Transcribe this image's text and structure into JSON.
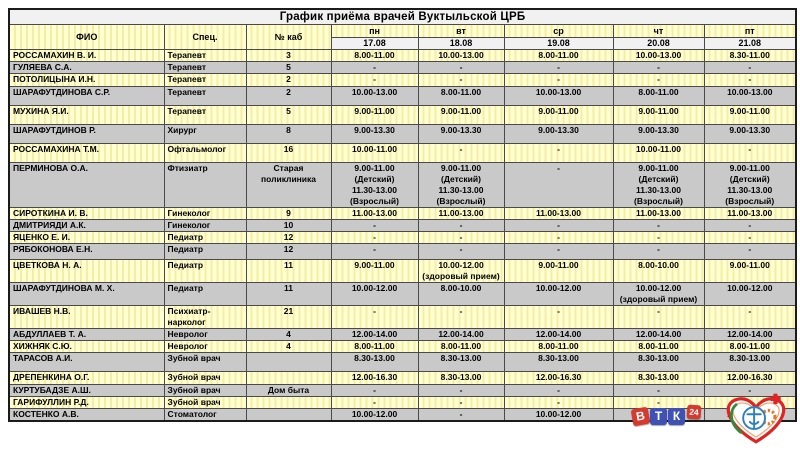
{
  "title": "График приёма врачей Вуктыльской ЦРБ",
  "columns": {
    "fio": "ФИО",
    "spec": "Спец.",
    "cab": "№ каб"
  },
  "days": [
    {
      "name": "пн",
      "date": "17.08"
    },
    {
      "name": "вт",
      "date": "18.08"
    },
    {
      "name": "ср",
      "date": "19.08"
    },
    {
      "name": "чт",
      "date": "20.08"
    },
    {
      "name": "пт",
      "date": "21.08"
    }
  ],
  "rows": [
    {
      "fio": "РОССАМАХИН В. И.",
      "spec": "Терапевт",
      "cab": "3",
      "times": [
        "8.00-11.00",
        "10.00-13.00",
        "8.00-11.00",
        "10.00-13.00",
        "8.30-11.00"
      ]
    },
    {
      "fio": "ГУЛЯЕВА С.А.",
      "spec": "Терапевт",
      "cab": "5",
      "times": [
        "-",
        "-",
        "-",
        "-",
        "-"
      ]
    },
    {
      "fio": "ПОТОЛИЦЫНА И.Н.",
      "spec": "Терапевт",
      "cab": "2",
      "times": [
        "-",
        "-",
        "-",
        "-",
        "-"
      ]
    },
    {
      "fio": "ШАРАФУТДИНОВА С.Р.",
      "spec": "Терапевт",
      "cab": "2",
      "times": [
        "10.00-13.00",
        "8.00-11.00",
        "10.00-13.00",
        "8.00-11.00",
        "10.00-13.00"
      ]
    },
    {
      "fio": "МУХИНА Я.И.",
      "spec": "Терапевт",
      "cab": "5",
      "times": [
        "9.00-11.00",
        "9.00-11.00",
        "9.00-11.00",
        "9.00-11.00",
        "9.00-11.00"
      ]
    },
    {
      "fio": "ШАРАФУТДИНОВ Р.",
      "spec": "Хирург",
      "cab": "8",
      "times": [
        "9.00-13.30",
        "9.00-13.30",
        "9.00-13.30",
        "9.00-13.30",
        "9.00-13.30"
      ]
    },
    {
      "fio": "РОССАМАХИНА Т.М.",
      "spec": "Офтальмолог",
      "cab": "16",
      "times": [
        "10.00-11.00",
        "-",
        "-",
        "10.00-11.00",
        "-"
      ]
    },
    {
      "fio": "ПЕРМИНОВА О.А.",
      "spec": "Фтизиатр",
      "cab": "Старая поликлиника",
      "times": [
        "9.00-11.00\n(Детский)\n11.30-13.00\n(Взрослый)",
        "9.00-11.00\n(Детский)\n11.30-13.00\n(Взрослый)",
        "-",
        "9.00-11.00\n(Детский)\n11.30-13.00\n(Взрослый)",
        "9.00-11.00\n(Детский)\n11.30-13.00\n(Взрослый)"
      ]
    },
    {
      "fio": "СИРОТКИНА И. В.",
      "spec": "Гинеколог",
      "cab": "9",
      "times": [
        "11.00-13.00",
        "11.00-13.00",
        "11.00-13.00",
        "11.00-13.00",
        "11.00-13.00"
      ]
    },
    {
      "fio": "ДМИТРИЯДИ А.К.",
      "spec": "Гинеколог",
      "cab": "10",
      "times": [
        "-",
        "-",
        "-",
        "-",
        "-"
      ]
    },
    {
      "fio": "ЯЦЕНКО Е. И.",
      "spec": "Педиатр",
      "cab": "12",
      "times": [
        "-",
        "-",
        "-",
        "-",
        "-"
      ]
    },
    {
      "fio": "РЯБОКОНОВА Е.Н.",
      "spec": "Педиатр",
      "cab": "12",
      "times": [
        "-",
        "-",
        "-",
        "-",
        "-"
      ]
    },
    {
      "fio": "ЦВЕТКОВА Н. А.",
      "spec": "Педиатр",
      "cab": "11",
      "times": [
        "9.00-11.00",
        "10.00-12.00\n(здоровый прием)",
        "9.00-11.00",
        "8.00-10.00",
        "9.00-11.00"
      ]
    },
    {
      "fio": "ШАРАФУТДИНОВА М. Х.",
      "spec": "Педиатр",
      "cab": "11",
      "times": [
        "10.00-12.00",
        "8.00-10.00",
        "10.00-12.00",
        "10.00-12.00\n(здоровый прием)",
        "10.00-12.00"
      ]
    },
    {
      "fio": "ИВАШЕВ Н.В.",
      "spec": "Психиатр-нарколог",
      "cab": "21",
      "times": [
        "-",
        "-",
        "-",
        "-",
        "-"
      ]
    },
    {
      "fio": "АБДУЛЛАЕВ Т. А.",
      "spec": "Невролог",
      "cab": "4",
      "times": [
        "12.00-14.00",
        "12.00-14.00",
        "12.00-14.00",
        "12.00-14.00",
        "12.00-14.00"
      ]
    },
    {
      "fio": "ХИЖНЯК С.Ю.",
      "spec": "Невролог",
      "cab": "4",
      "times": [
        "8.00-11.00",
        "8.00-11.00",
        "8.00-11.00",
        "8.00-11.00",
        "8.00-11.00"
      ]
    },
    {
      "fio": "ТАРАСОВ А.И.",
      "spec": "Зубной врач",
      "cab": "",
      "times": [
        "8.30-13.00",
        "8.30-13.00",
        "8.30-13.00",
        "8.30-13.00",
        "8.30-13.00"
      ]
    },
    {
      "fio": "ДРЕПЕНКИНА О.Г.",
      "spec": "Зубной врач",
      "cab": "",
      "times": [
        "12.00-16.30",
        "8.30-13.00",
        "12.00-16.30",
        "8.30-13.00",
        "12.00-16.30"
      ]
    },
    {
      "fio": "КУРТУБАДЗЕ А.Ш.",
      "spec": "Зубной врач",
      "cab": "Дом быта",
      "times": [
        "-",
        "-",
        "-",
        "-",
        "-"
      ]
    },
    {
      "fio": "ГАРИФУЛЛИН Р.Д.",
      "spec": "Зубной врач",
      "cab": "",
      "times": [
        "-",
        "-",
        "-",
        "-",
        "-"
      ]
    },
    {
      "fio": "КОСТЕНКО А.В.",
      "spec": "Стоматолог",
      "cab": "",
      "times": [
        "10.00-12.00",
        "-",
        "10.00-12.00",
        "-",
        "10.00-12.00"
      ]
    }
  ],
  "logos": {
    "vtk": {
      "letters": [
        "В",
        "Т",
        "К"
      ],
      "badge": "24"
    },
    "heart": {
      "description": "medical heart emblem with laurel, staff, gear and red cross"
    }
  },
  "colors": {
    "row_yellow_a": "#ffffd2",
    "row_yellow_b": "#f4eda6",
    "row_gray": "#c9c9c9",
    "header_gray": "#f1f1f1",
    "vtk_red": "#d63a2e",
    "vtk_blue": "#3f51b5",
    "heart_red": "#e02424",
    "laurel_green": "#2e8b3a",
    "staff_blue": "#2d7fc1",
    "gear_orange": "#e8772a"
  }
}
